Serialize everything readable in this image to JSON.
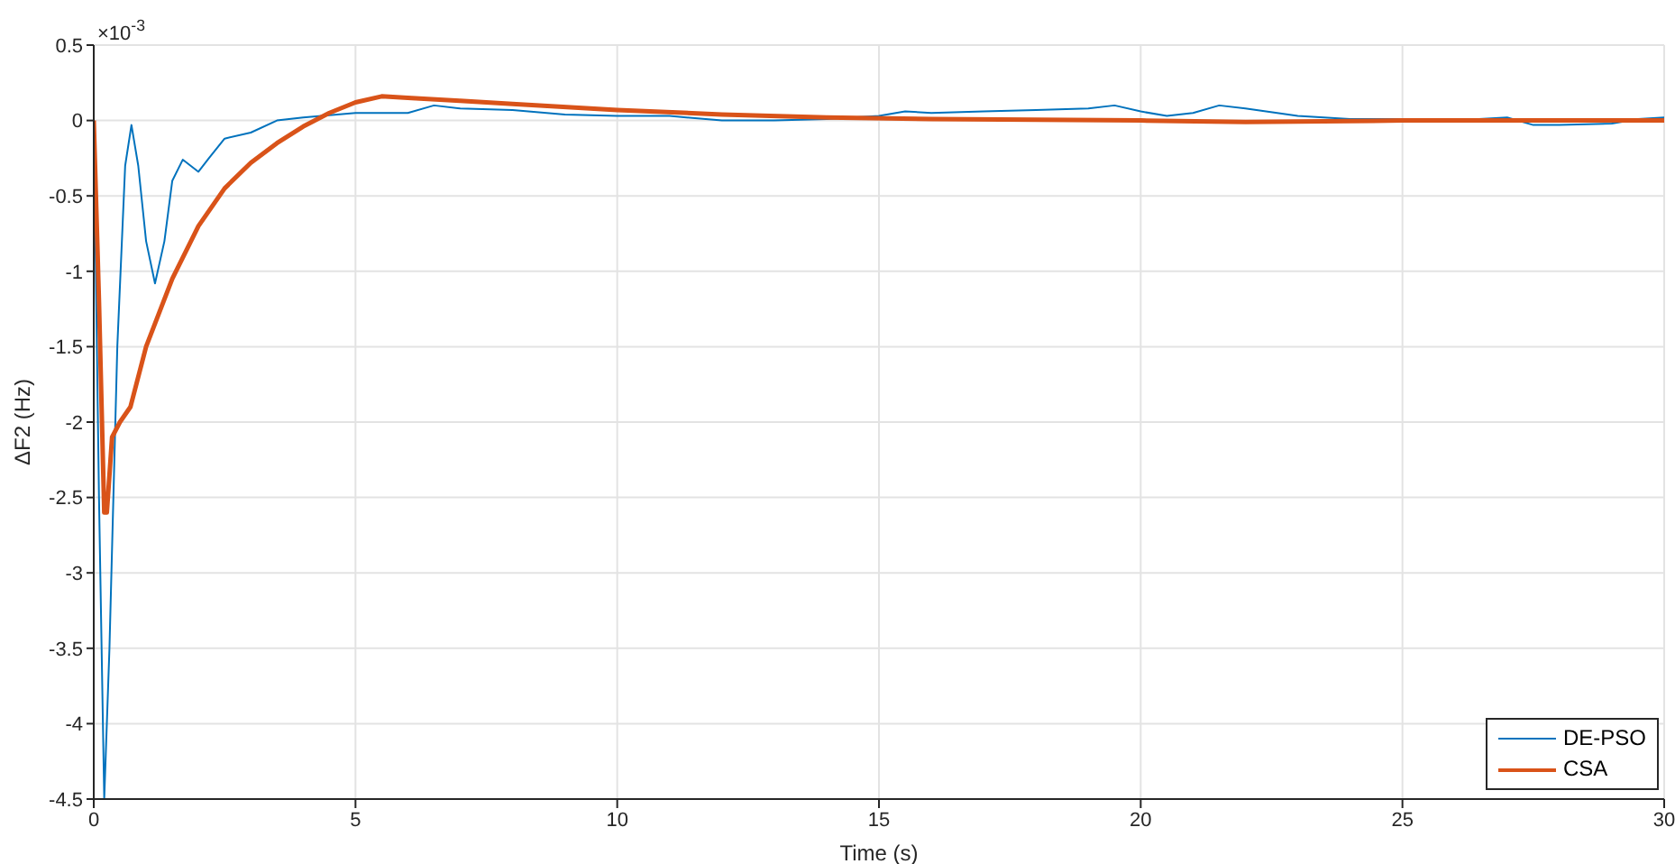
{
  "chart_data": {
    "type": "line",
    "xlabel": "Time (s)",
    "ylabel": "ΔF2 (Hz)",
    "annotations": [
      "×10$^{-3}$"
    ],
    "xlim": [
      0,
      30
    ],
    "xticks": [
      0,
      5,
      10,
      15,
      20,
      25,
      30
    ],
    "ylim": [
      -4.5,
      0.5
    ],
    "yticks": [
      -4.5,
      -4,
      -3.5,
      -3,
      -2.5,
      -2,
      -1.5,
      -1,
      -0.5,
      0,
      0.5
    ],
    "grid": true,
    "legend": "bottom right",
    "marker": "none",
    "line_style": "solid",
    "series": [
      {
        "name": "DE-PSO",
        "color": "#0072bd",
        "x": [
          0,
          0.1,
          0.2,
          0.3,
          0.45,
          0.6,
          0.72,
          0.85,
          1.0,
          1.17,
          1.35,
          1.5,
          1.7,
          1.85,
          2.0,
          2.2,
          2.5,
          3,
          3.5,
          4,
          5,
          6,
          6.5,
          7,
          8,
          9,
          10,
          11,
          12,
          13,
          14,
          15,
          15.5,
          16,
          17,
          18,
          19,
          19.5,
          20,
          20.5,
          21,
          21.5,
          22,
          23,
          24,
          25,
          26,
          27,
          27.5,
          28,
          29,
          29.5,
          30
        ],
        "values": [
          0,
          -2.5,
          -4.5,
          -3.5,
          -1.5,
          -0.3,
          -0.03,
          -0.3,
          -0.8,
          -1.08,
          -0.8,
          -0.4,
          -0.26,
          -0.3,
          -0.34,
          -0.25,
          -0.12,
          -0.08,
          0,
          0.02,
          0.05,
          0.05,
          0.1,
          0.08,
          0.07,
          0.04,
          0.03,
          0.03,
          0,
          0,
          0.01,
          0.03,
          0.06,
          0.05,
          0.06,
          0.07,
          0.08,
          0.1,
          0.06,
          0.03,
          0.05,
          0.1,
          0.08,
          0.03,
          0.01,
          0.01,
          0,
          0.02,
          -0.03,
          -0.03,
          -0.02,
          0.01,
          0.02
        ]
      },
      {
        "name": "CSA",
        "color": "#d95319",
        "x": [
          0,
          0.1,
          0.2,
          0.25,
          0.35,
          0.5,
          0.7,
          1,
          1.5,
          2,
          2.5,
          3,
          3.5,
          4,
          4.5,
          5,
          5.5,
          6,
          7,
          8,
          10,
          12,
          14,
          16,
          20,
          22,
          25,
          30
        ],
        "values": [
          0,
          -1.2,
          -2.6,
          -2.6,
          -2.1,
          -2.0,
          -1.9,
          -1.5,
          -1.05,
          -0.7,
          -0.45,
          -0.28,
          -0.15,
          -0.04,
          0.05,
          0.12,
          0.16,
          0.15,
          0.13,
          0.11,
          0.07,
          0.04,
          0.02,
          0.01,
          0,
          -0.01,
          0,
          0
        ]
      }
    ]
  }
}
